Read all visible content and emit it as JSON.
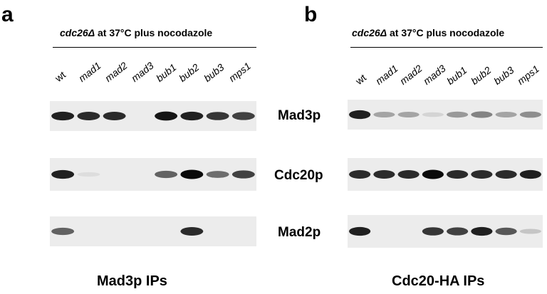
{
  "panels": [
    {
      "letter": "a",
      "condition_strain": "cdc26Δ",
      "condition_rest": " at 37°C plus nocodazole",
      "lanes": [
        "wt",
        "mad1",
        "mad2",
        "mad3",
        "bub1",
        "bub2",
        "bub3",
        "mps1"
      ],
      "footer": "Mad3p IPs",
      "blots": [
        {
          "protein": "Mad3p",
          "intensities": [
            0.9,
            0.85,
            0.85,
            0.0,
            0.95,
            0.9,
            0.8,
            0.75
          ]
        },
        {
          "protein": "Cdc20p",
          "intensities": [
            0.9,
            0.04,
            0.0,
            0.0,
            0.6,
            1.0,
            0.55,
            0.75
          ]
        },
        {
          "protein": "Mad2p",
          "intensities": [
            0.6,
            0.0,
            0.0,
            0.0,
            0.0,
            0.85,
            0.0,
            0.0
          ]
        }
      ]
    },
    {
      "letter": "b",
      "condition_strain": "cdc26Δ",
      "condition_rest": " at 37°C plus nocodazole",
      "lanes": [
        "wt",
        "mad1",
        "mad2",
        "mad3",
        "bub1",
        "bub2",
        "bub3",
        "mps1"
      ],
      "footer": "Cdc20-HA IPs",
      "blots": [
        {
          "protein": "Mad3p",
          "intensities": [
            0.9,
            0.3,
            0.3,
            0.08,
            0.35,
            0.45,
            0.3,
            0.4
          ]
        },
        {
          "protein": "Cdc20p",
          "intensities": [
            0.85,
            0.85,
            0.85,
            1.0,
            0.85,
            0.85,
            0.85,
            0.9
          ]
        },
        {
          "protein": "Mad2p",
          "intensities": [
            0.9,
            0.0,
            0.0,
            0.8,
            0.75,
            0.9,
            0.65,
            0.15
          ]
        }
      ]
    }
  ],
  "row_labels": [
    "Mad3p",
    "Cdc20p",
    "Mad2p"
  ]
}
